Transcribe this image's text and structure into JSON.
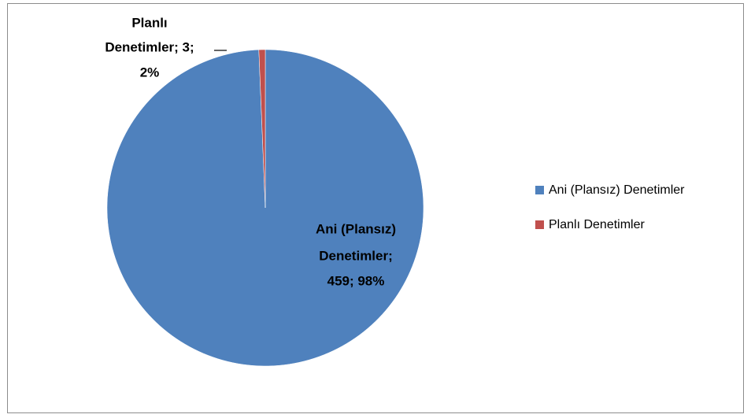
{
  "chart_data": {
    "type": "pie",
    "categories": [
      "Ani (Plansız) Denetimler",
      "Planlı Denetimler"
    ],
    "values": [
      459,
      3
    ],
    "value_labels": [
      [
        "Ani (Plansız)",
        "Denetimler;",
        "459; 98%"
      ],
      [
        "Planlı",
        "Denetimler; 3;",
        "2%"
      ]
    ],
    "colors": [
      "#4f81bd",
      "#c0504d"
    ],
    "legend": "right"
  }
}
